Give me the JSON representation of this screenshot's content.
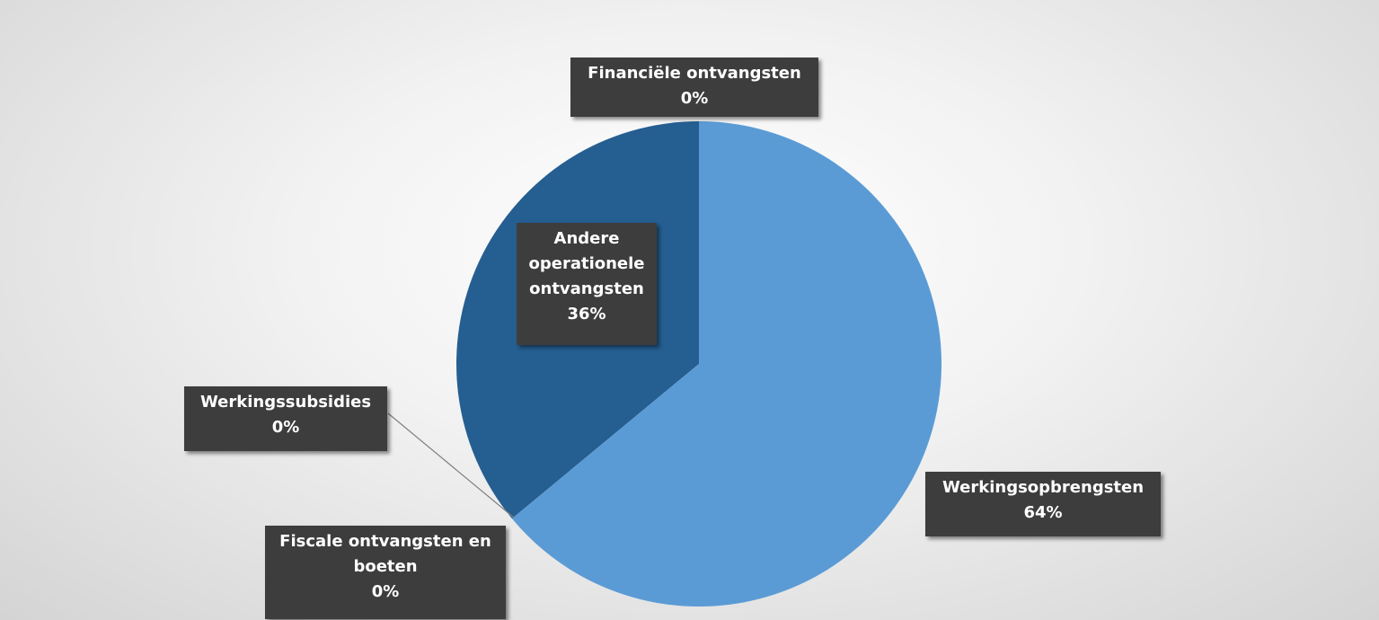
{
  "chart_data": {
    "type": "pie",
    "categories": [
      "Werkingsopbrengsten",
      "Fiscale ontvangsten en boeten",
      "Werkingssubsidies",
      "Andere operationele ontvangsten",
      "Financiële ontvangsten"
    ],
    "values": [
      64,
      0,
      0,
      36,
      0
    ],
    "value_labels": [
      "64%",
      "0%",
      "0%",
      "36%",
      "0%"
    ],
    "colors": [
      "#5b9bd5",
      "#4472c4",
      "#a5a5a5",
      "#255e91",
      "#ffc000"
    ]
  }
}
